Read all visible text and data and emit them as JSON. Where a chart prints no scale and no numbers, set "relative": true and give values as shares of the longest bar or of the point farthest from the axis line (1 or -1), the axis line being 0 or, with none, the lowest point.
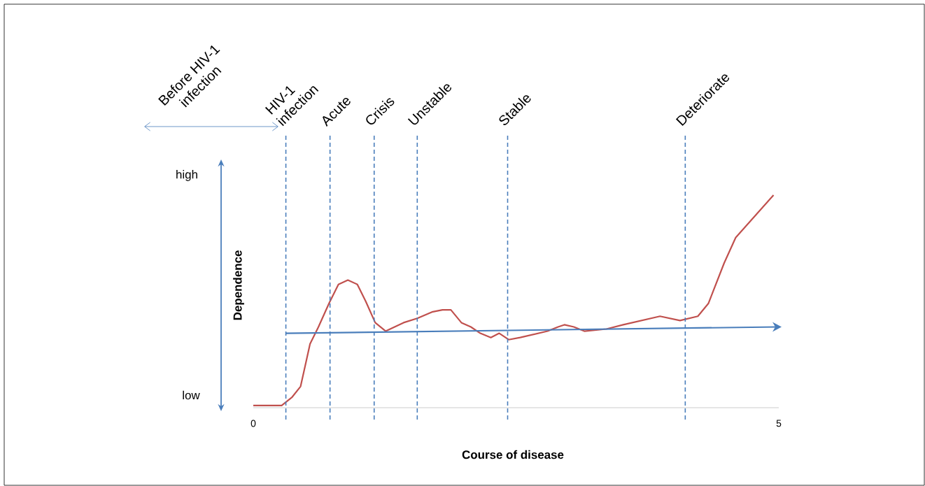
{
  "chart_data": {
    "type": "line",
    "relative": true,
    "xlabel": "Course of disease",
    "ylabel": "Dependence",
    "xlim": [
      0,
      5
    ],
    "xticks": [
      0,
      5
    ],
    "grid": false,
    "line_style": "solid",
    "annotations": [
      "high",
      "low",
      "Before HIV-1 infection"
    ],
    "ref_lines": [
      {
        "axis": "x",
        "value": 0.31,
        "label": "HIV-1 infection",
        "color": "#4a7ebb",
        "line_style": "dashed"
      },
      {
        "axis": "x",
        "value": 0.73,
        "label": "Acute",
        "color": "#4a7ebb",
        "line_style": "dashed"
      },
      {
        "axis": "x",
        "value": 1.15,
        "label": "Crisis",
        "color": "#4a7ebb",
        "line_style": "dashed"
      },
      {
        "axis": "x",
        "value": 1.56,
        "label": "Unstable",
        "color": "#4a7ebb",
        "line_style": "dashed"
      },
      {
        "axis": "x",
        "value": 2.42,
        "label": "Stable",
        "color": "#4a7ebb",
        "line_style": "dashed"
      },
      {
        "axis": "x",
        "value": 4.11,
        "label": "Deteriorate",
        "color": "#4a7ebb",
        "line_style": "dashed"
      }
    ],
    "series": [
      {
        "color": "#c0504d",
        "x": [
          0,
          0.27,
          0.37,
          0.45,
          0.54,
          0.62,
          0.72,
          0.81,
          0.9,
          0.99,
          1.07,
          1.16,
          1.26,
          1.43,
          1.56,
          1.7,
          1.8,
          1.88,
          1.98,
          2.07,
          2.16,
          2.26,
          2.34,
          2.43,
          2.54,
          2.8,
          2.9,
          2.96,
          3.05,
          3.15,
          3.36,
          3.52,
          3.87,
          4.06,
          4.23,
          4.33,
          4.48,
          4.59,
          4.95
        ],
        "values": [
          0.01,
          0.01,
          0.05,
          0.1,
          0.3,
          0.38,
          0.49,
          0.58,
          0.6,
          0.58,
          0.5,
          0.4,
          0.36,
          0.4,
          0.42,
          0.45,
          0.46,
          0.46,
          0.4,
          0.38,
          0.35,
          0.33,
          0.35,
          0.32,
          0.33,
          0.36,
          0.38,
          0.39,
          0.38,
          0.36,
          0.37,
          0.39,
          0.43,
          0.41,
          0.43,
          0.49,
          0.68,
          0.8,
          1.0
        ]
      },
      {
        "color": "#4a7ebb",
        "x": [
          0.31,
          5.0
        ],
        "values": [
          0.35,
          0.38
        ]
      }
    ]
  }
}
